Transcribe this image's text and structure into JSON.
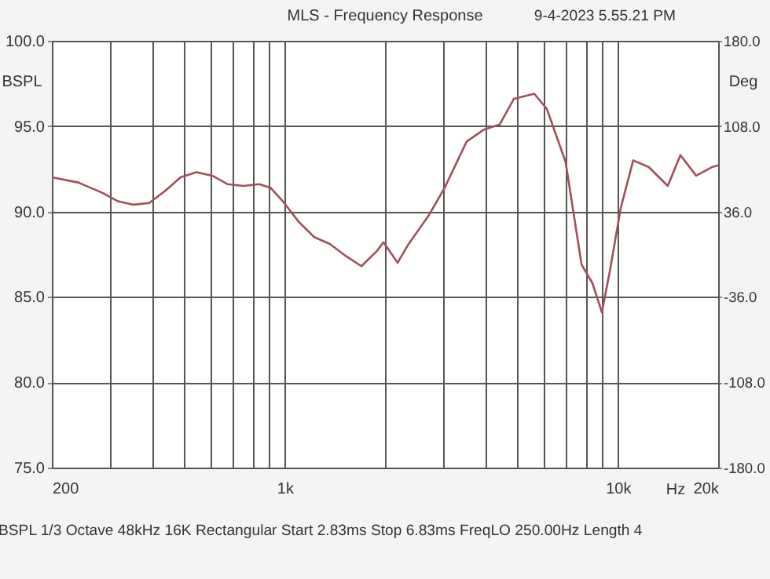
{
  "chart_data": {
    "type": "line",
    "title": "MLS - Frequency Response",
    "xlabel": "Hz",
    "ylabel": "BSPL",
    "y2label": "Deg",
    "annotations": [
      "9-4-2023 5.55.21 PM",
      "BSPL   1/3 Octave   48kHz   16K   Rectangular   Start 2.83ms   Stop 6.83ms   FreqLO 250.00Hz   Length 4"
    ],
    "x": [
      200,
      240,
      283,
      316,
      352,
      392,
      437,
      487,
      543,
      606,
      675,
      752,
      839,
      906,
      987,
      1101,
      1227,
      1367,
      1524,
      1699,
      1894,
      1979,
      2182,
      2355,
      2712,
      3022,
      3517,
      3965,
      4420,
      4875,
      5612,
      6124,
      6970,
      7780,
      8390,
      8955,
      9460,
      10200,
      11120,
      12390,
      14120,
      15410,
      17180,
      19150,
      20000
    ],
    "series": [
      {
        "color": "#a0505a",
        "values": [
          92.0,
          91.7,
          91.1,
          90.6,
          90.4,
          90.5,
          91.2,
          92.0,
          92.3,
          92.1,
          91.6,
          91.5,
          91.6,
          91.4,
          90.6,
          89.4,
          88.5,
          88.1,
          87.4,
          86.8,
          87.7,
          88.2,
          87.0,
          88.1,
          89.8,
          91.4,
          94.1,
          94.8,
          95.1,
          96.6,
          96.9,
          96.0,
          92.9,
          86.9,
          85.8,
          84.1,
          86.5,
          90.2,
          93.0,
          92.6,
          91.5,
          93.3,
          92.1,
          92.6,
          92.7
        ]
      }
    ],
    "log": "x",
    "grid": true,
    "line_style": "solid",
    "marker": "none",
    "xlim": [
      200,
      20000
    ],
    "xticks": [
      200,
      {
        "value": 300,
        "label": null
      },
      {
        "value": 400,
        "label": null
      },
      {
        "value": 500,
        "label": null
      },
      {
        "value": 600,
        "label": null
      },
      {
        "value": 700,
        "label": null
      },
      {
        "value": 800,
        "label": null
      },
      {
        "value": 900,
        "label": null
      },
      {
        "value": 1000,
        "label": "1k"
      },
      {
        "value": 2000,
        "label": null
      },
      {
        "value": 3000,
        "label": null
      },
      {
        "value": 4000,
        "label": null
      },
      {
        "value": 5000,
        "label": null
      },
      {
        "value": 6000,
        "label": null
      },
      {
        "value": 7000,
        "label": null
      },
      {
        "value": 8000,
        "label": null
      },
      {
        "value": 9000,
        "label": null
      },
      {
        "value": 10000,
        "label": "10k"
      },
      {
        "value": 20000,
        "label": "20k"
      }
    ],
    "ylim": [
      75,
      100
    ],
    "yticks": [
      {
        "value": 75,
        "label": "75.0"
      },
      {
        "value": 80,
        "label": "80.0"
      },
      {
        "value": 85,
        "label": "85.0"
      },
      {
        "value": 90,
        "label": "90.0"
      },
      {
        "value": 95,
        "label": "95.0"
      },
      {
        "value": 100,
        "label": "100.0"
      }
    ],
    "y2lim": [
      -180,
      180
    ],
    "y2ticks": [
      {
        "value": -180,
        "label": "-180.0"
      },
      {
        "value": -108,
        "label": "-108.0"
      },
      {
        "value": -36,
        "label": "-36.0"
      },
      {
        "value": 36,
        "label": "36.0"
      },
      {
        "value": 108,
        "label": "108.0"
      },
      {
        "value": 180,
        "label": "180.0"
      }
    ]
  }
}
